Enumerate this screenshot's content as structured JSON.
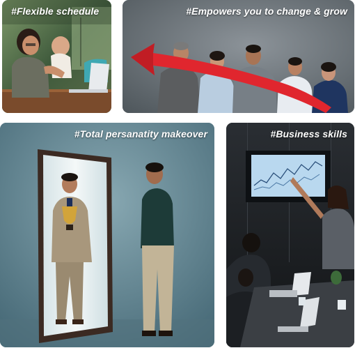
{
  "tiles": [
    {
      "caption": "#Flexible schedule"
    },
    {
      "caption": "#Empowers you to change & grow"
    },
    {
      "caption": "#Total persanatity makeover"
    },
    {
      "caption": "#Business skills"
    }
  ],
  "colors": {
    "caption_text": "#ffffff",
    "arrow_red": "#e0262e",
    "chart_screen": "#b9d8ef"
  }
}
